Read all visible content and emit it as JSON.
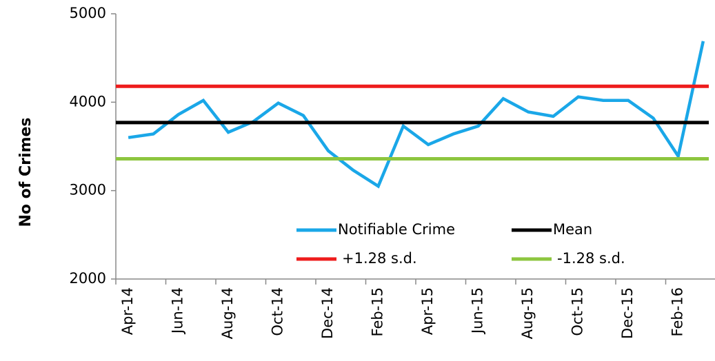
{
  "chart_data": {
    "type": "line",
    "y_label": "No of Crimes",
    "categories": [
      "Apr-14",
      null,
      "Jun-14",
      null,
      "Aug-14",
      null,
      "Oct-14",
      null,
      "Dec-14",
      null,
      "Feb-15",
      null,
      "Apr-15",
      null,
      "Jun-15",
      null,
      "Aug-15",
      null,
      "Oct-15",
      null,
      "Dec-15",
      null,
      "Feb-16",
      null
    ],
    "series": [
      {
        "name": "Notifiable Crime",
        "color": "#1aa7e8",
        "values": [
          3600,
          3640,
          3860,
          4020,
          3660,
          3780,
          3990,
          3850,
          3450,
          3230,
          3050,
          3730,
          3520,
          3640,
          3730,
          4040,
          3890,
          3840,
          4060,
          4020,
          4020,
          3820,
          3390,
          4690
        ]
      },
      {
        "name": "Mean",
        "color": "#000000",
        "values": [
          3770,
          3770,
          3770,
          3770,
          3770,
          3770,
          3770,
          3770,
          3770,
          3770,
          3770,
          3770,
          3770,
          3770,
          3770,
          3770,
          3770,
          3770,
          3770,
          3770,
          3770,
          3770,
          3770,
          3770
        ]
      },
      {
        "name": "+1.28 s.d.",
        "color": "#ee1c1c",
        "values": [
          4180,
          4180,
          4180,
          4180,
          4180,
          4180,
          4180,
          4180,
          4180,
          4180,
          4180,
          4180,
          4180,
          4180,
          4180,
          4180,
          4180,
          4180,
          4180,
          4180,
          4180,
          4180,
          4180,
          4180
        ]
      },
      {
        "name": "-1.28 s.d.",
        "color": "#8dc63f",
        "values": [
          3360,
          3360,
          3360,
          3360,
          3360,
          3360,
          3360,
          3360,
          3360,
          3360,
          3360,
          3360,
          3360,
          3360,
          3360,
          3360,
          3360,
          3360,
          3360,
          3360,
          3360,
          3360,
          3360,
          3360
        ]
      }
    ],
    "ylim": [
      2000,
      5000
    ],
    "yticks": [
      2000,
      3000,
      4000,
      5000
    ],
    "grid": false
  }
}
